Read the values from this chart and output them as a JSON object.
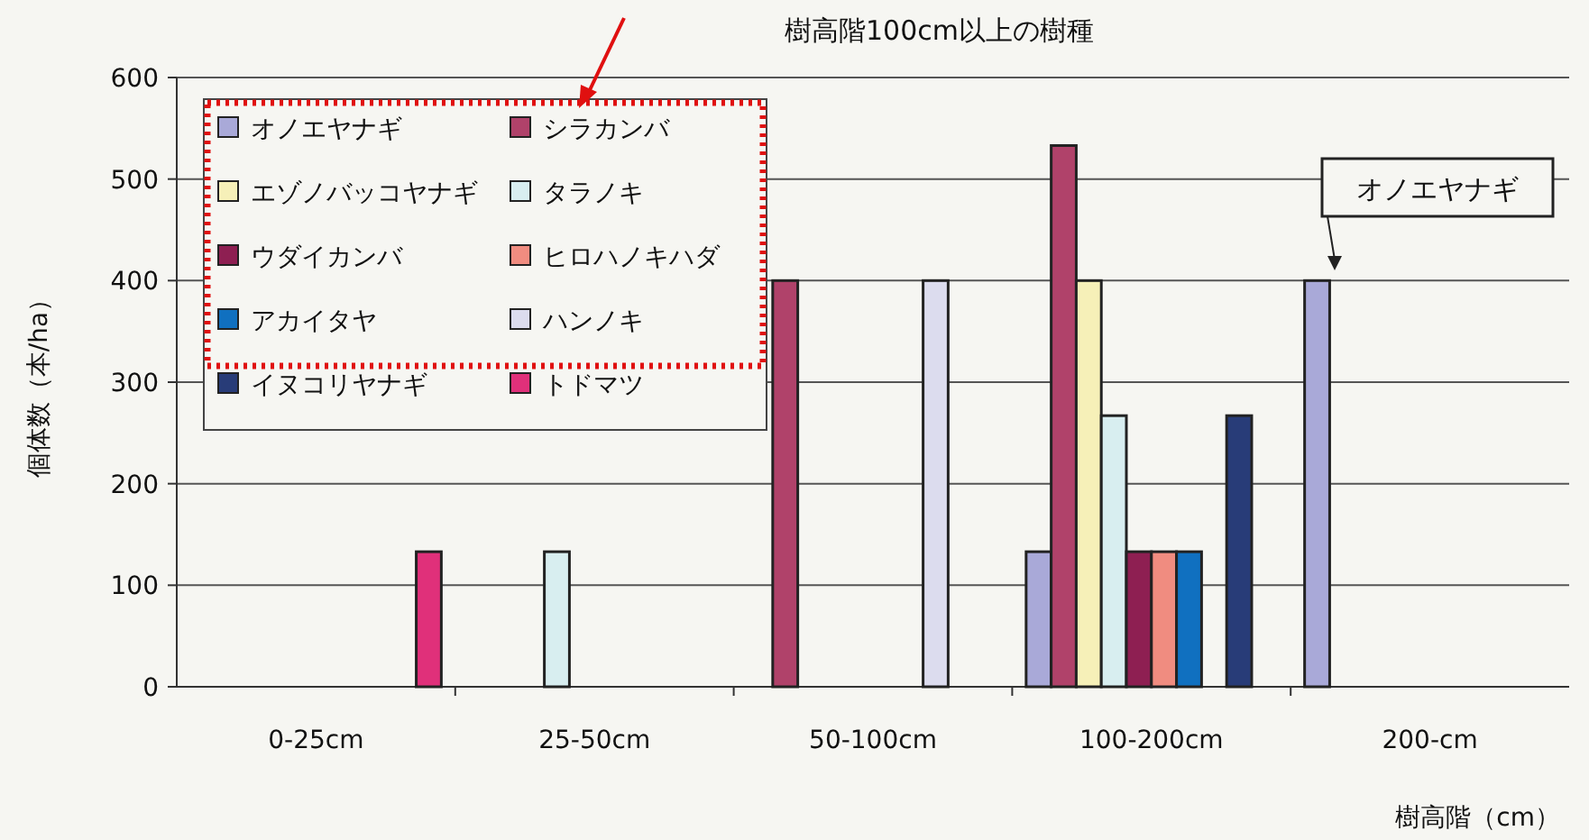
{
  "chart_data": {
    "type": "bar",
    "xlabel": "樹高階（cm）",
    "ylabel": "個体数（本/ha）",
    "categories": [
      "0-25cm",
      "25-50cm",
      "50-100cm",
      "100-200cm",
      "200-cm"
    ],
    "series": [
      {
        "name": "オノエヤナギ",
        "color": "#a9a9d8",
        "values": [
          null,
          null,
          null,
          133,
          400
        ]
      },
      {
        "name": "シラカンバ",
        "color": "#b0426a",
        "values": [
          null,
          null,
          400,
          533,
          null
        ]
      },
      {
        "name": "エゾノバッコヤナギ",
        "color": "#f6f0b8",
        "values": [
          null,
          null,
          null,
          400,
          null
        ]
      },
      {
        "name": "タラノキ",
        "color": "#d8eef0",
        "values": [
          null,
          133,
          null,
          267,
          null
        ]
      },
      {
        "name": "ウダイカンバ",
        "color": "#8e1f52",
        "values": [
          null,
          null,
          null,
          133,
          null
        ]
      },
      {
        "name": "ヒロハノキハダ",
        "color": "#f08c80",
        "values": [
          null,
          null,
          null,
          133,
          null
        ]
      },
      {
        "name": "アカイタヤ",
        "color": "#1070c0",
        "values": [
          null,
          null,
          null,
          133,
          null
        ]
      },
      {
        "name": "ハンノキ",
        "color": "#dcdcee",
        "values": [
          null,
          null,
          400,
          null,
          null
        ]
      },
      {
        "name": "イヌコリヤナギ",
        "color": "#283c78",
        "values": [
          null,
          null,
          null,
          267,
          null
        ]
      },
      {
        "name": "トドマツ",
        "color": "#e0307a",
        "values": [
          133,
          null,
          null,
          null,
          null
        ]
      }
    ],
    "ylim": [
      0,
      600
    ],
    "yticks": [
      0,
      100,
      200,
      300,
      400,
      500,
      600
    ],
    "grid": "y",
    "legend": "top left",
    "annotations": [
      "樹高階100cm以上の樹種",
      "オノエヤナギ"
    ]
  }
}
